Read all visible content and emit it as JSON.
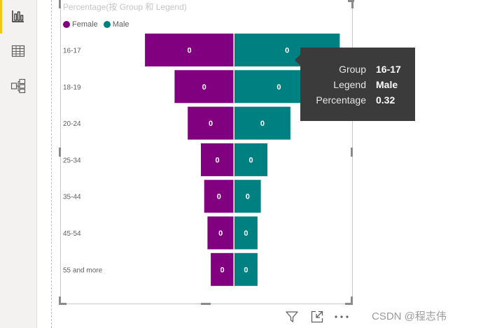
{
  "rail": {
    "items": [
      {
        "name": "report-view",
        "icon": "bar-chart-icon",
        "active": true
      },
      {
        "name": "data-view",
        "icon": "table-grid-icon",
        "active": false
      },
      {
        "name": "model-view",
        "icon": "model-relationships-icon",
        "active": false
      }
    ],
    "accent_color": "#f2c811"
  },
  "visual": {
    "title": "Percentage(按 Group 和 Legend)",
    "legend": [
      {
        "label": "Female",
        "color": "#800080"
      },
      {
        "label": "Male",
        "color": "#008080"
      }
    ]
  },
  "chart_data": {
    "type": "bar",
    "orientation": "horizontal-funnel-diverging",
    "title": "Percentage(按 Group 和 Legend)",
    "categories": [
      "16-17",
      "18-19",
      "20-24",
      "25-34",
      "35-44",
      "45-54",
      "55 and more"
    ],
    "series": [
      {
        "name": "Female",
        "color": "#800080",
        "values": [
          0.27,
          0.18,
          0.14,
          0.1,
          0.09,
          0.08,
          0.07
        ],
        "labels": [
          "0",
          "0",
          "0",
          "0",
          "0",
          "0",
          "0"
        ]
      },
      {
        "name": "Male",
        "color": "#008080",
        "values": [
          0.32,
          0.27,
          0.17,
          0.1,
          0.08,
          0.07,
          0.07
        ],
        "labels": [
          "0",
          "0",
          "0",
          "0",
          "0",
          "0",
          "0"
        ]
      }
    ],
    "xlabel": "",
    "ylabel": "",
    "legend_position": "top-left"
  },
  "tooltip": {
    "rows": [
      {
        "key": "Group",
        "value": "16-17"
      },
      {
        "key": "Legend",
        "value": "Male"
      },
      {
        "key": "Percentage",
        "value": "0.32"
      }
    ]
  },
  "footer": {
    "icons": [
      "filter-icon",
      "focus-mode-icon",
      "more-options-icon"
    ]
  },
  "watermark": "CSDN @程志伟"
}
